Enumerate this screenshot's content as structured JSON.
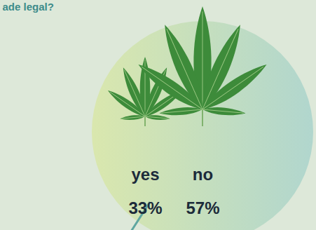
{
  "chart_data": {
    "type": "pictogram",
    "title": "ade legal?",
    "categories": [
      "yes",
      "no"
    ],
    "values": [
      33,
      57
    ],
    "value_labels": [
      "33%",
      "57%"
    ],
    "data_labels": true,
    "color": "#3d8b3a"
  }
}
